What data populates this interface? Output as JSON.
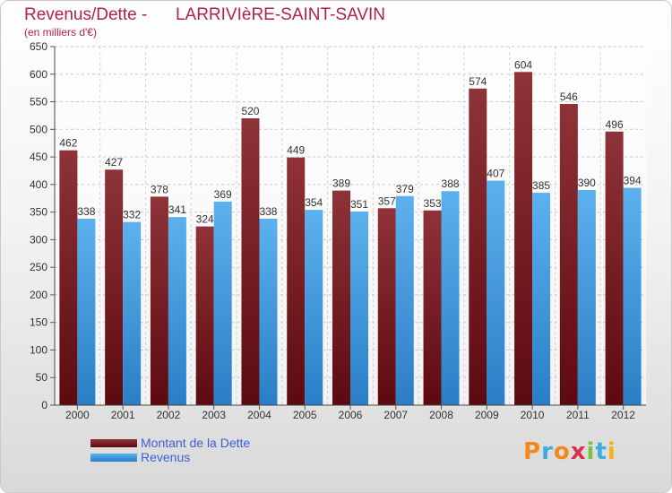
{
  "header": {
    "title": "Revenus/Dette -      LARRIVIèRE-SAINT-SAVIN",
    "subtitle": "(en milliers d'€)"
  },
  "brand": {
    "letters": [
      "P",
      "r",
      "o",
      "x",
      "i",
      "t",
      "i"
    ],
    "letter_colors": [
      "#f28a1b",
      "#3aaee0",
      "#f28a1b",
      "#d8324a",
      "#7cc242",
      "#3aaee0",
      "#f2b41b"
    ]
  },
  "chart_data": {
    "type": "bar",
    "categories": [
      "2000",
      "2001",
      "2002",
      "2003",
      "2004",
      "2005",
      "2006",
      "2007",
      "2008",
      "2009",
      "2010",
      "2011",
      "2012"
    ],
    "series": [
      {
        "name": "Montant de la Dette",
        "color": "#7a1a22",
        "values": [
          462,
          427,
          378,
          324,
          520,
          449,
          389,
          357,
          353,
          574,
          604,
          546,
          496
        ]
      },
      {
        "name": "Revenus",
        "color": "#4a9fe0",
        "values": [
          338,
          332,
          341,
          369,
          338,
          354,
          351,
          379,
          388,
          407,
          385,
          390,
          394
        ]
      }
    ],
    "ylim": [
      0,
      650
    ],
    "yticks": [
      0,
      50,
      100,
      150,
      200,
      250,
      300,
      350,
      400,
      450,
      500,
      550,
      600,
      650
    ],
    "grid": true,
    "legend_position": "bottom-left"
  }
}
